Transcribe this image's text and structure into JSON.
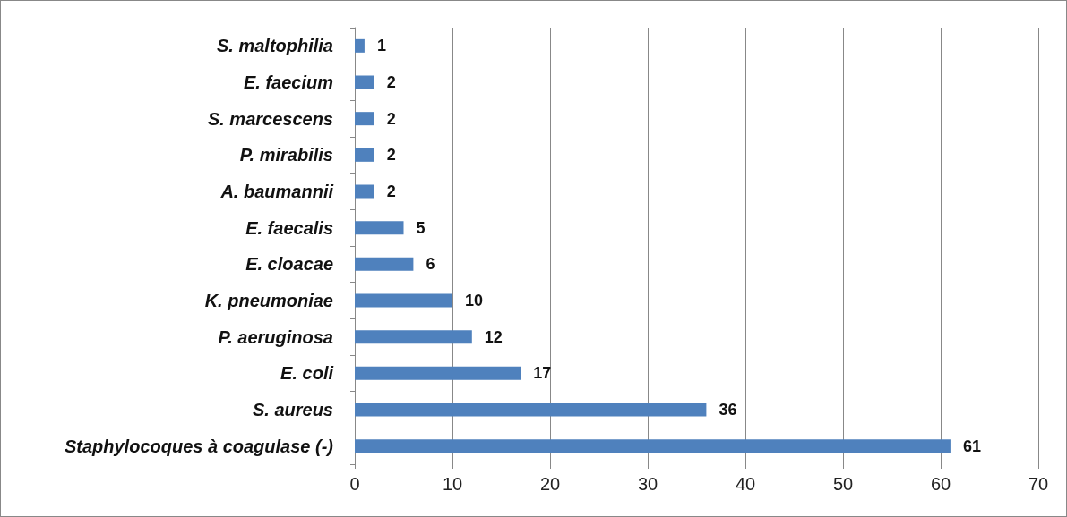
{
  "chart_data": {
    "type": "bar",
    "orientation": "horizontal",
    "categories": [
      "S. maltophilia",
      "E. faecium",
      "S. marcescens",
      "P. mirabilis",
      "A. baumannii",
      "E. faecalis",
      "E. cloacae",
      "K. pneumoniae",
      "P. aeruginosa",
      "E. coli",
      "S. aureus",
      "Staphylocoques à coagulase (-)"
    ],
    "values": [
      1,
      2,
      2,
      2,
      2,
      5,
      6,
      10,
      12,
      17,
      36,
      61
    ],
    "color": "#4f81bd",
    "xlim": [
      0,
      70
    ],
    "xticks": [
      0,
      10,
      20,
      30,
      40,
      50,
      60,
      70
    ],
    "grid": "x",
    "data_labels": true
  }
}
